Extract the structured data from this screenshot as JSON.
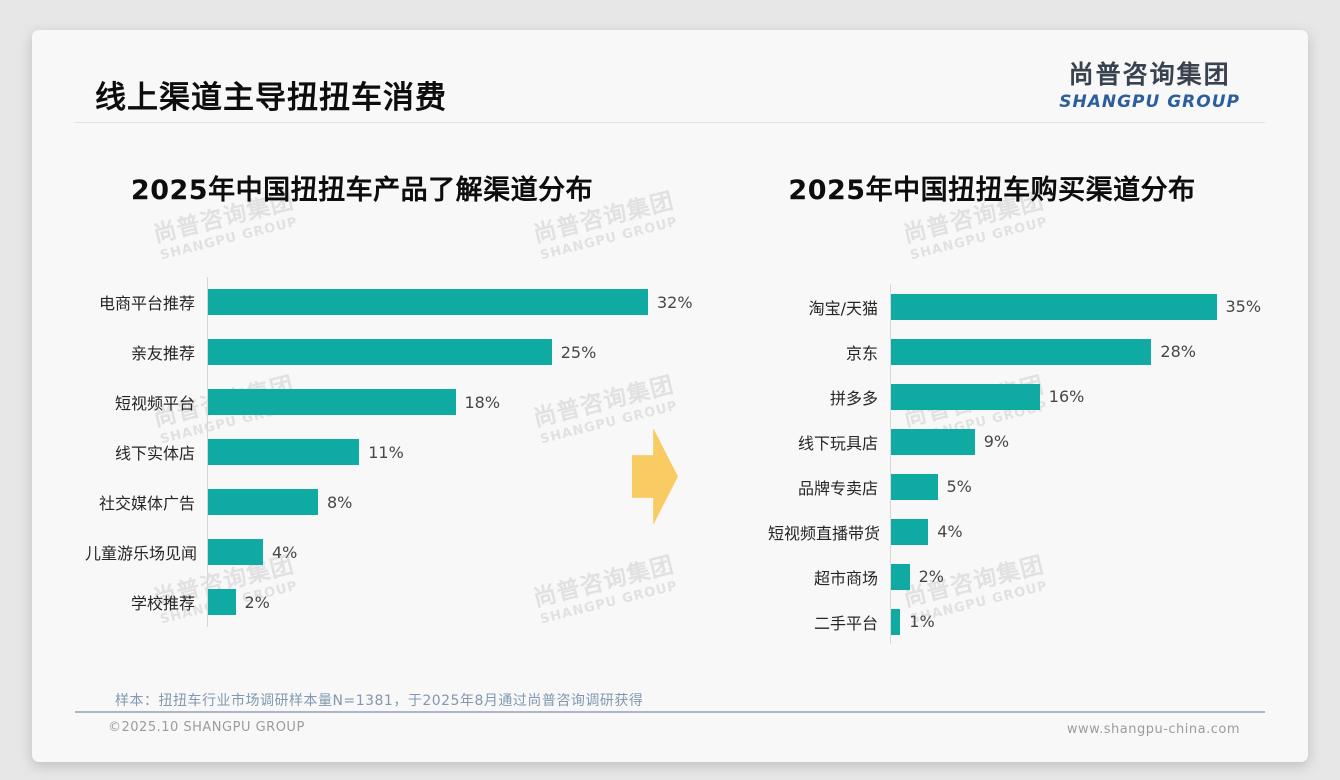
{
  "page": {
    "title": "线上渠道主导扭扭车消费",
    "logo": {
      "cn": "尚普咨询集团",
      "en": "SHANGPU GROUP"
    },
    "watermark": {
      "cn": "尚普咨询集团",
      "en": "SHANGPU GROUP"
    },
    "footer": {
      "note": "样本：扭扭车行业市场调研样本量N=1381，于2025年8月通过尚普咨询调研获得",
      "copyright": "©2025.10 SHANGPU GROUP",
      "website": "www.shangpu-china.com"
    }
  },
  "colors": {
    "bar": "#0faaa1",
    "arrow": "#f8cc62",
    "logo_blue": "#2c5e9e",
    "footer_note": "#8198b0"
  },
  "chart_data": [
    {
      "type": "bar",
      "orientation": "horizontal",
      "title": "2025年中国扭扭车产品了解渠道分布",
      "categories": [
        "电商平台推荐",
        "亲友推荐",
        "短视频平台",
        "线下实体店",
        "社交媒体广告",
        "儿童游乐场见闻",
        "学校推荐"
      ],
      "values": [
        32,
        25,
        18,
        11,
        8,
        4,
        2
      ],
      "unit": "%",
      "value_labels": [
        "32%",
        "25%",
        "18%",
        "11%",
        "8%",
        "4%",
        "2%"
      ],
      "xlim": [
        0,
        35
      ],
      "grid": false,
      "legend": "none"
    },
    {
      "type": "bar",
      "orientation": "horizontal",
      "title": "2025年中国扭扭车购买渠道分布",
      "categories": [
        "淘宝/天猫",
        "京东",
        "拼多多",
        "线下玩具店",
        "品牌专卖店",
        "短视频直播带货",
        "超市商场",
        "二手平台"
      ],
      "values": [
        35,
        28,
        16,
        9,
        5,
        4,
        2,
        1
      ],
      "unit": "%",
      "value_labels": [
        "35%",
        "28%",
        "16%",
        "9%",
        "5%",
        "4%",
        "2%",
        "1%"
      ],
      "xlim": [
        0,
        38
      ],
      "grid": false,
      "legend": "none"
    }
  ]
}
